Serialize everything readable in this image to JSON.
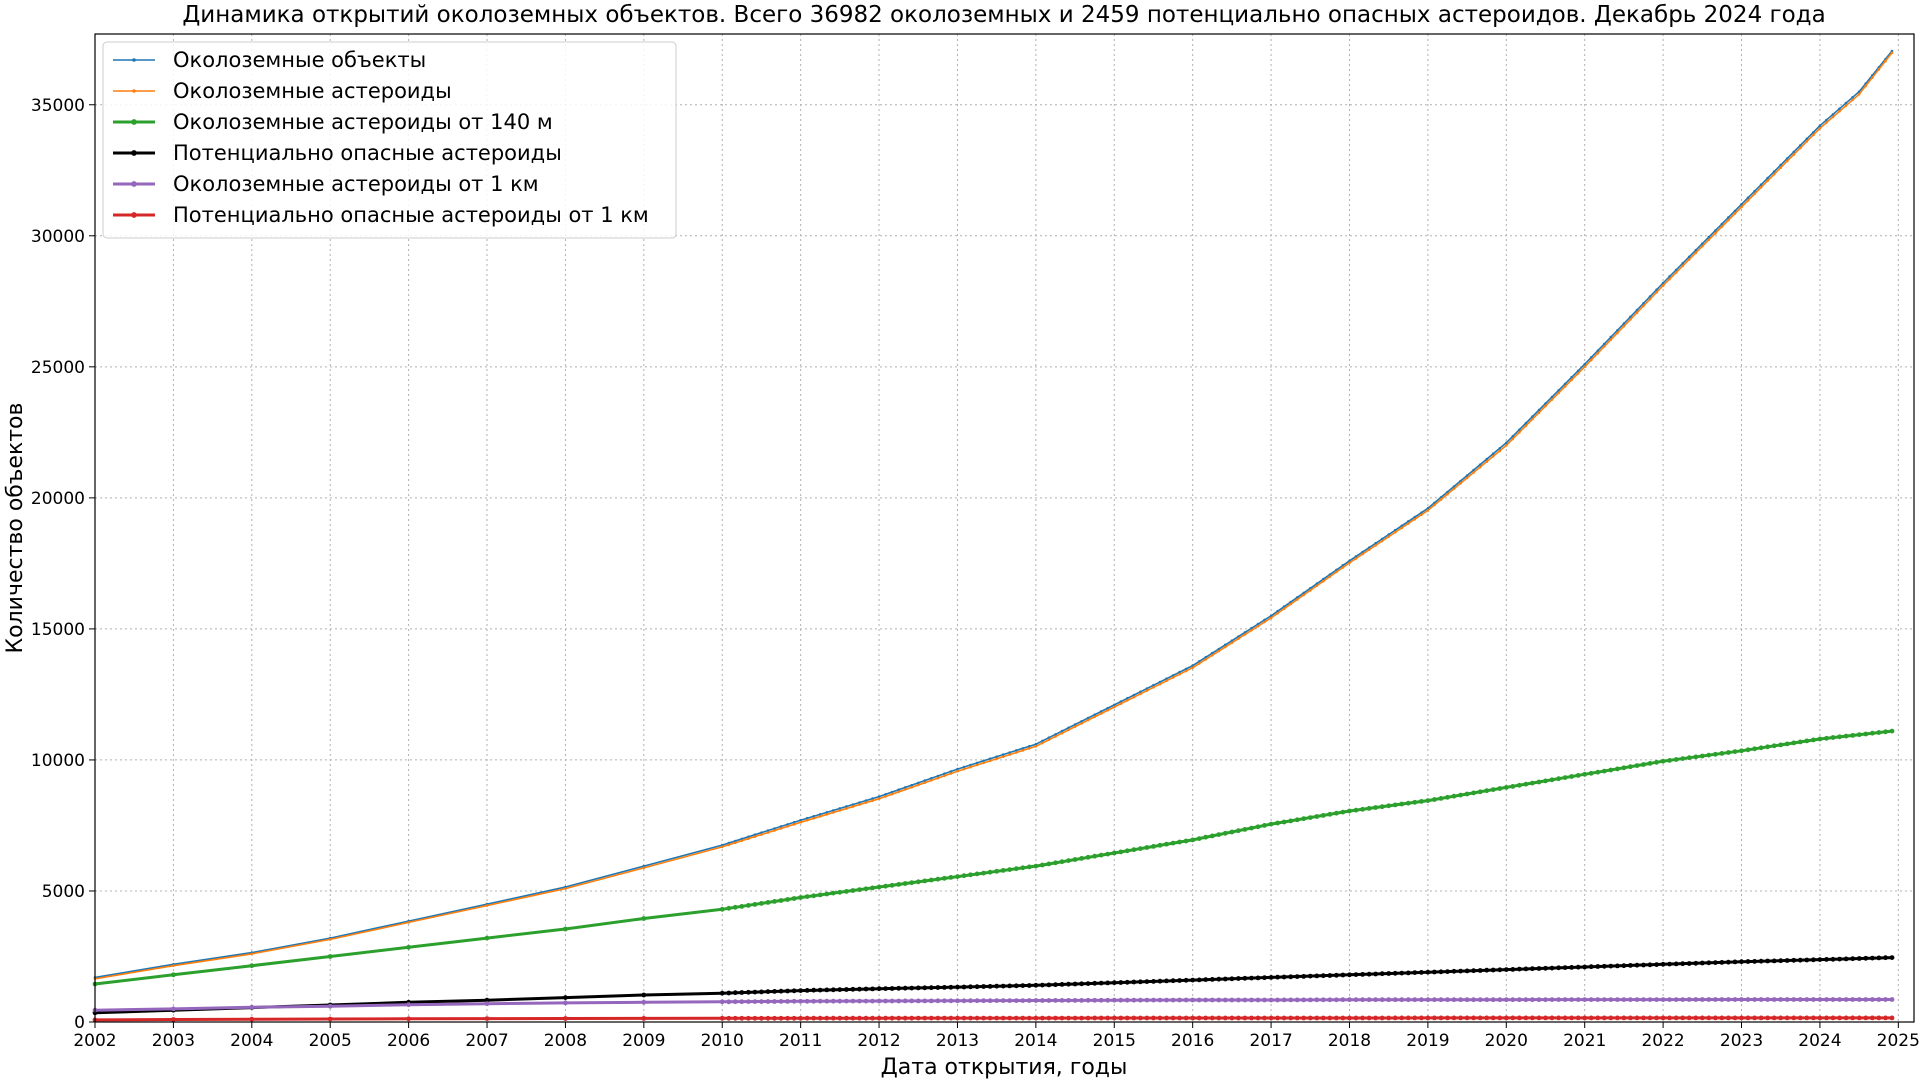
{
  "chart_data": {
    "type": "line",
    "title": "Динамика открытий околоземных объектов. Всего 36982 околоземных и 2459 потенциально опасных астероидов. Декабрь 2024 года",
    "xlabel": "Дата открытия, годы",
    "ylabel": "Количество объектов",
    "xlim": [
      2002,
      2025.2
    ],
    "ylim": [
      0,
      37700
    ],
    "x_ticks": [
      "2002",
      "2003",
      "2004",
      "2005",
      "2006",
      "2007",
      "2008",
      "2009",
      "2010",
      "2011",
      "2012",
      "2013",
      "2014",
      "2015",
      "2016",
      "2017",
      "2018",
      "2019",
      "2020",
      "2021",
      "2022",
      "2023",
      "2024",
      "2025"
    ],
    "y_ticks": [
      "0",
      "5000",
      "10000",
      "15000",
      "20000",
      "25000",
      "30000",
      "35000"
    ],
    "grid": true,
    "legend_position": "top-left",
    "series": [
      {
        "name": "Околоземные объекты",
        "color": "#1f77b4",
        "x": [
          2002,
          2003,
          2004,
          2005,
          2006,
          2007,
          2008,
          2009,
          2010,
          2011,
          2012,
          2013,
          2014,
          2015,
          2016,
          2017,
          2018,
          2019,
          2020,
          2021,
          2022,
          2023,
          2024,
          2024.5,
          2024.92
        ],
        "y": [
          1700,
          2200,
          2650,
          3200,
          3850,
          4500,
          5150,
          5950,
          6750,
          7700,
          8600,
          9650,
          10600,
          12100,
          13600,
          15500,
          17600,
          19600,
          22100,
          25100,
          28200,
          31200,
          34200,
          35500,
          37050
        ]
      },
      {
        "name": "Околоземные астероиды",
        "color": "#ff7f0e",
        "x": [
          2002,
          2003,
          2004,
          2005,
          2006,
          2007,
          2008,
          2009,
          2010,
          2011,
          2012,
          2013,
          2014,
          2015,
          2016,
          2017,
          2018,
          2019,
          2020,
          2021,
          2022,
          2023,
          2024,
          2024.5,
          2024.92
        ],
        "y": [
          1650,
          2150,
          2600,
          3150,
          3800,
          4440,
          5090,
          5880,
          6680,
          7620,
          8520,
          9570,
          10520,
          12020,
          13520,
          15420,
          17520,
          19520,
          22000,
          25000,
          28100,
          31100,
          34100,
          35400,
          36982
        ]
      },
      {
        "name": "Околоземные астероиды от 140 м",
        "color": "#2ca02c",
        "x": [
          2002,
          2003,
          2004,
          2005,
          2006,
          2007,
          2008,
          2009,
          2010,
          2011,
          2012,
          2013,
          2014,
          2015,
          2016,
          2017,
          2018,
          2019,
          2020,
          2021,
          2022,
          2023,
          2024,
          2024.92
        ],
        "y": [
          1450,
          1800,
          2150,
          2500,
          2850,
          3200,
          3550,
          3950,
          4300,
          4750,
          5150,
          5550,
          5950,
          6450,
          6950,
          7550,
          8050,
          8450,
          8950,
          9450,
          9950,
          10350,
          10800,
          11100
        ]
      },
      {
        "name": "Потенциально опасные астероиды",
        "color": "#000000",
        "x": [
          2002,
          2003,
          2004,
          2005,
          2006,
          2007,
          2008,
          2009,
          2010,
          2011,
          2012,
          2013,
          2014,
          2015,
          2016,
          2017,
          2018,
          2019,
          2020,
          2021,
          2022,
          2023,
          2024,
          2024.92
        ],
        "y": [
          350,
          450,
          550,
          650,
          750,
          830,
          930,
          1030,
          1100,
          1200,
          1270,
          1330,
          1400,
          1500,
          1600,
          1700,
          1800,
          1900,
          2000,
          2100,
          2200,
          2300,
          2380,
          2459
        ]
      },
      {
        "name": "Околоземные астероиды от 1 км",
        "color": "#9467bd",
        "x": [
          2002,
          2003,
          2004,
          2005,
          2006,
          2007,
          2008,
          2009,
          2010,
          2011,
          2012,
          2013,
          2014,
          2015,
          2016,
          2017,
          2018,
          2019,
          2020,
          2021,
          2022,
          2023,
          2024,
          2024.92
        ],
        "y": [
          450,
          500,
          560,
          600,
          660,
          700,
          730,
          750,
          770,
          790,
          800,
          810,
          820,
          830,
          840,
          840,
          850,
          850,
          850,
          855,
          855,
          860,
          860,
          860
        ]
      },
      {
        "name": "Потенциально опасные астероиды от 1 км",
        "color": "#d62728",
        "x": [
          2002,
          2003,
          2004,
          2005,
          2006,
          2007,
          2008,
          2009,
          2010,
          2011,
          2012,
          2013,
          2014,
          2015,
          2016,
          2017,
          2018,
          2019,
          2020,
          2021,
          2022,
          2023,
          2024,
          2024.92
        ],
        "y": [
          80,
          95,
          105,
          115,
          122,
          128,
          133,
          137,
          140,
          143,
          146,
          148,
          150,
          151,
          152,
          153,
          154,
          155,
          155,
          156,
          156,
          157,
          157,
          158
        ]
      }
    ]
  }
}
